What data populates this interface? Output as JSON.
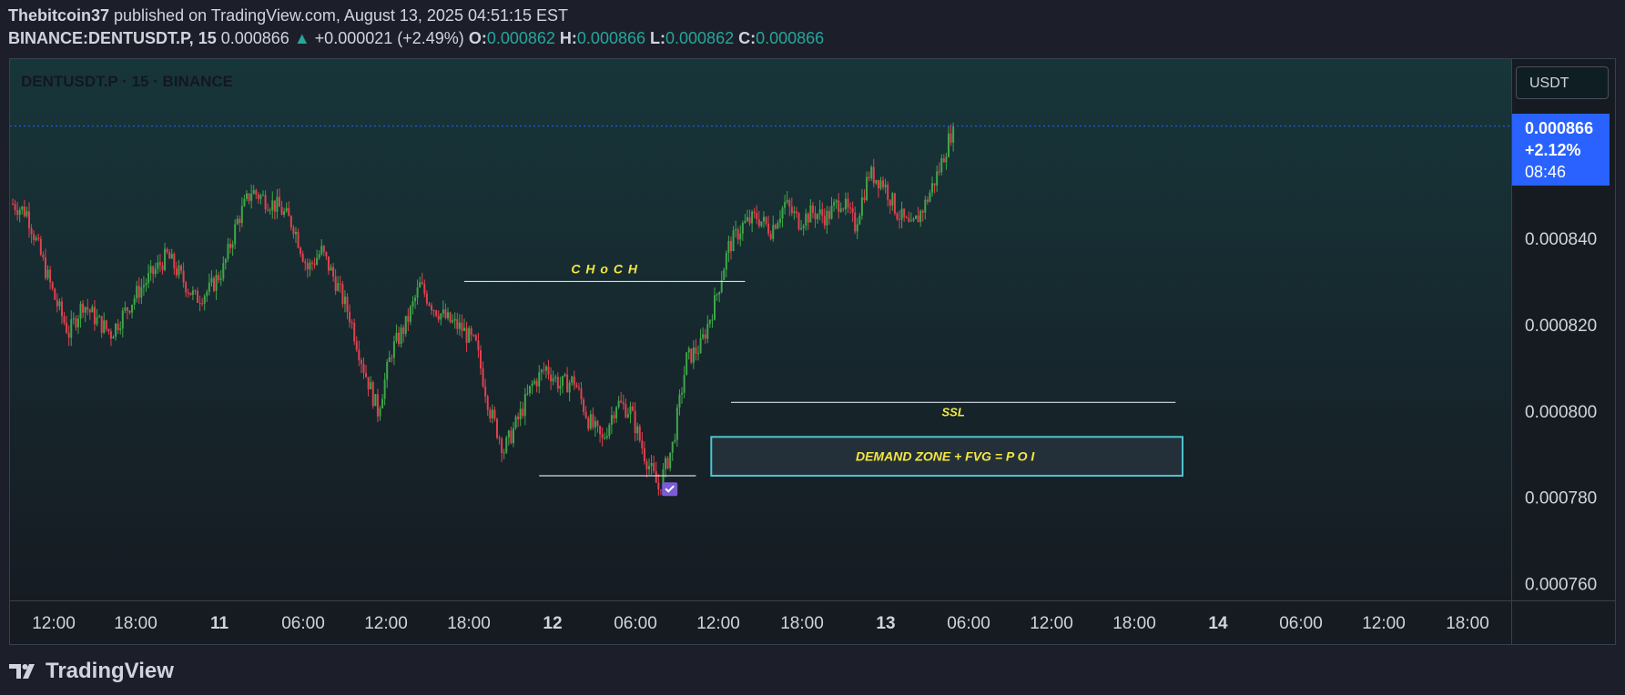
{
  "header": {
    "author": "Thebitcoin37",
    "published_text": " published on TradingView.com, August 13, 2025 04:51:15 EST",
    "symbol": "BINANCE:DENTUSDT.P, 15",
    "last": "0.000866",
    "up_arrow": "▲",
    "change": "+0.000021 (+2.49%)",
    "o_label": "O:",
    "o_value": "0.000862",
    "h_label": "H:",
    "h_value": "0.000866",
    "l_label": "L:",
    "l_value": "0.000862",
    "c_label": "C:",
    "c_value": "0.000866"
  },
  "chart_symbol_label": "DENTUSDT.P · 15 · BINANCE",
  "currency": "USDT",
  "price_tag": {
    "price": "0.000866",
    "change_pct": "+2.12%",
    "countdown": "08:46"
  },
  "footer": {
    "logo_text": "TradingView"
  },
  "colors": {
    "background_top": "#17363a",
    "background_bottom": "#161b22",
    "up": "#3fa64a",
    "down": "#e0414f",
    "accent": "#2962ff",
    "annotation": "#f5e642",
    "zone_border": "#4fc3cf"
  },
  "chart_data": {
    "type": "candlestick",
    "y_axis": {
      "min": 0.00075,
      "max": 0.00087,
      "ticks": [
        "0.000840",
        "0.000820",
        "0.000800",
        "0.000780",
        "0.000760"
      ],
      "tick_values": [
        0.00084,
        0.00082,
        0.0008,
        0.00078,
        0.00076
      ]
    },
    "x_axis": {
      "ticks": [
        "12:00",
        "18:00",
        "11",
        "06:00",
        "12:00",
        "18:00",
        "12",
        "06:00",
        "12:00",
        "18:00",
        "13",
        "06:00",
        "12:00",
        "18:00",
        "14",
        "06:00",
        "12:00",
        "18:00"
      ],
      "day_ticks": [
        "11",
        "12",
        "13",
        "14"
      ]
    },
    "price_path": [
      [
        0,
        0.000848
      ],
      [
        6,
        0.000846
      ],
      [
        12,
        0.000836
      ],
      [
        18,
        0.000826
      ],
      [
        24,
        0.000818
      ],
      [
        30,
        0.000825
      ],
      [
        36,
        0.000821
      ],
      [
        42,
        0.000818
      ],
      [
        48,
        0.000823
      ],
      [
        54,
        0.000828
      ],
      [
        60,
        0.000832
      ],
      [
        66,
        0.000836
      ],
      [
        72,
        0.000831
      ],
      [
        78,
        0.000826
      ],
      [
        84,
        0.000828
      ],
      [
        90,
        0.000833
      ],
      [
        96,
        0.000844
      ],
      [
        102,
        0.000851
      ],
      [
        108,
        0.000849
      ],
      [
        114,
        0.000847
      ],
      [
        120,
        0.000843
      ],
      [
        126,
        0.000833
      ],
      [
        132,
        0.000837
      ],
      [
        138,
        0.00083
      ],
      [
        144,
        0.000822
      ],
      [
        150,
        0.00081
      ],
      [
        156,
        0.0008
      ],
      [
        162,
        0.000814
      ],
      [
        168,
        0.00082
      ],
      [
        174,
        0.000829
      ],
      [
        180,
        0.000824
      ],
      [
        186,
        0.000821
      ],
      [
        192,
        0.000819
      ],
      [
        198,
        0.000815
      ],
      [
        204,
        0.0008
      ],
      [
        210,
        0.000791
      ],
      [
        216,
        0.000798
      ],
      [
        222,
        0.000806
      ],
      [
        228,
        0.00081
      ],
      [
        234,
        0.000806
      ],
      [
        240,
        0.000807
      ],
      [
        246,
        0.000798
      ],
      [
        252,
        0.000793
      ],
      [
        258,
        0.000802
      ],
      [
        264,
        0.0008
      ],
      [
        270,
        0.00079
      ],
      [
        276,
        0.000782
      ],
      [
        282,
        0.000792
      ],
      [
        288,
        0.000812
      ],
      [
        294,
        0.000815
      ],
      [
        300,
        0.000825
      ],
      [
        306,
        0.000838
      ],
      [
        312,
        0.000843
      ],
      [
        318,
        0.000845
      ],
      [
        324,
        0.000842
      ],
      [
        330,
        0.000848
      ],
      [
        336,
        0.000844
      ],
      [
        342,
        0.000846
      ],
      [
        348,
        0.000845
      ],
      [
        354,
        0.000849
      ],
      [
        360,
        0.000843
      ],
      [
        366,
        0.000855
      ],
      [
        372,
        0.000853
      ],
      [
        378,
        0.000846
      ],
      [
        384,
        0.000842
      ],
      [
        390,
        0.000848
      ],
      [
        396,
        0.000856
      ],
      [
        402,
        0.000866
      ]
    ],
    "annotations": [
      {
        "label": "C H o C H",
        "kind": "line",
        "from_bar": 193,
        "to_bar": 313,
        "price": 0.00083
      },
      {
        "label": "SSL",
        "kind": "line",
        "from_bar": 307,
        "to_bar": 497,
        "price": 0.000802
      },
      {
        "label": "",
        "kind": "line",
        "from_bar": 225,
        "to_bar": 292,
        "price": 0.000785
      },
      {
        "label": "DEMAND ZONE + FVG = P O I",
        "kind": "zone",
        "from_bar": 297,
        "to_bar": 500,
        "price_low": 0.000785,
        "price_high": 0.000794
      }
    ],
    "last_price_line": 0.000866
  }
}
